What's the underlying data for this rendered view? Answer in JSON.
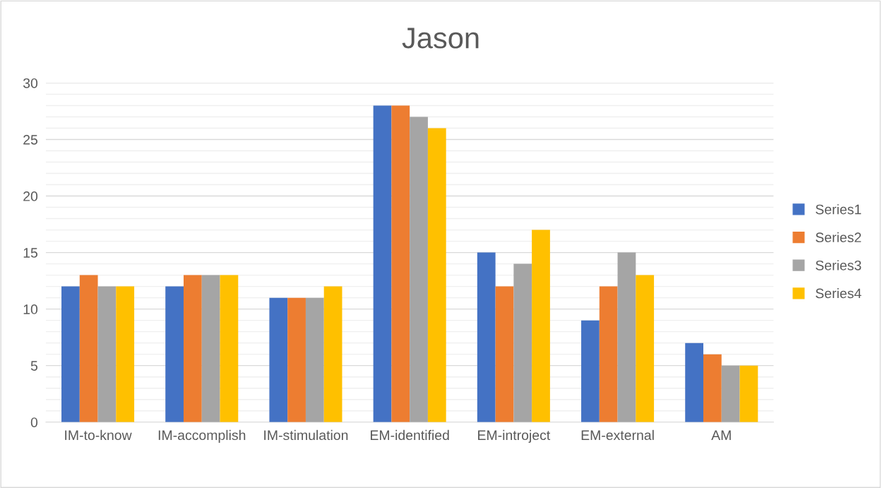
{
  "chart_data": {
    "type": "bar",
    "title": "Jason",
    "categories": [
      "IM-to-know",
      "IM-accomplish",
      "IM-stimulation",
      "EM-identified",
      "EM-introject",
      "EM-external",
      "AM"
    ],
    "series": [
      {
        "name": "Series1",
        "color": "#4472c4",
        "values": [
          12,
          12,
          11,
          28,
          15,
          9,
          7
        ]
      },
      {
        "name": "Series2",
        "color": "#ed7d31",
        "values": [
          13,
          13,
          11,
          28,
          12,
          12,
          6
        ]
      },
      {
        "name": "Series3",
        "color": "#a5a5a5",
        "values": [
          12,
          13,
          11,
          27,
          14,
          15,
          5
        ]
      },
      {
        "name": "Series4",
        "color": "#ffc000",
        "values": [
          12,
          13,
          12,
          26,
          17,
          13,
          5
        ]
      }
    ],
    "ylim": [
      0,
      30
    ],
    "yticks": [
      0,
      {
        "value": 1,
        "label": null
      },
      {
        "value": 2,
        "label": null
      },
      {
        "value": 3,
        "label": null
      },
      {
        "value": 4,
        "label": null
      },
      5,
      {
        "value": 6,
        "label": null
      },
      {
        "value": 7,
        "label": null
      },
      {
        "value": 8,
        "label": null
      },
      {
        "value": 9,
        "label": null
      },
      10,
      {
        "value": 11,
        "label": null
      },
      {
        "value": 12,
        "label": null
      },
      {
        "value": 13,
        "label": null
      },
      {
        "value": 14,
        "label": null
      },
      15,
      {
        "value": 16,
        "label": null
      },
      {
        "value": 17,
        "label": null
      },
      {
        "value": 18,
        "label": null
      },
      {
        "value": 19,
        "label": null
      },
      20,
      {
        "value": 21,
        "label": null
      },
      {
        "value": 22,
        "label": null
      },
      {
        "value": 23,
        "label": null
      },
      {
        "value": 24,
        "label": null
      },
      25,
      {
        "value": 26,
        "label": null
      },
      {
        "value": 27,
        "label": null
      },
      {
        "value": 28,
        "label": null
      },
      {
        "value": 29,
        "label": null
      },
      30
    ],
    "grid": "y",
    "legend": "right"
  }
}
